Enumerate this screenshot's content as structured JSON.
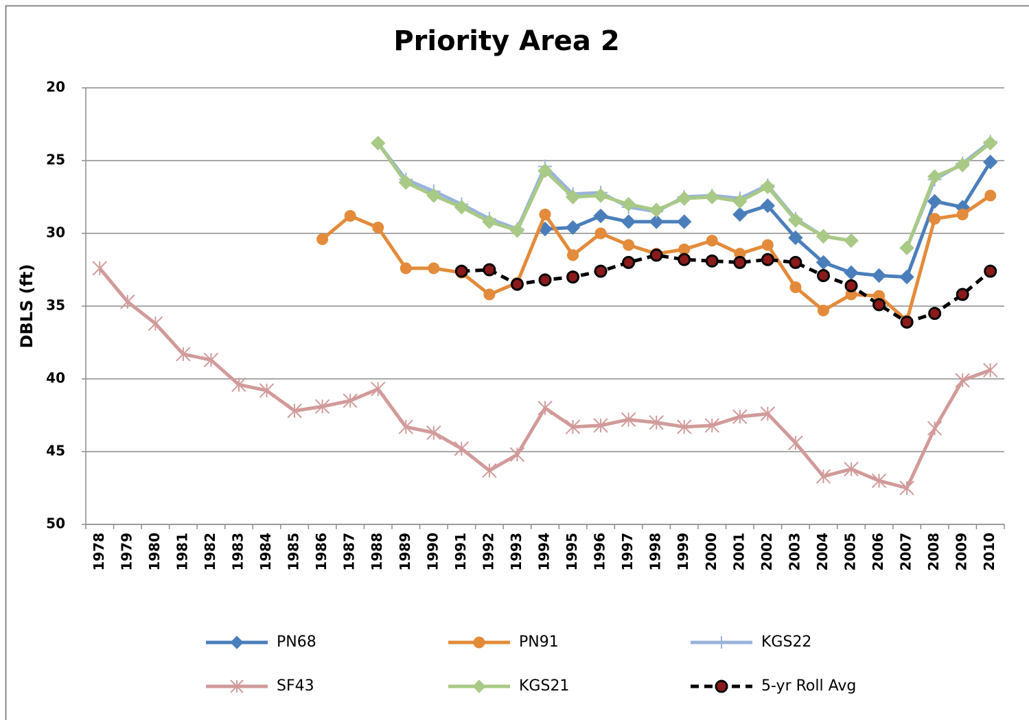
{
  "chart_data": {
    "type": "line",
    "title": "Priority Area 2",
    "y_label": "DBLS (ft)",
    "categories": [
      "1978",
      "1979",
      "1980",
      "1981",
      "1982",
      "1983",
      "1984",
      "1985",
      "1986",
      "1987",
      "1988",
      "1989",
      "1990",
      "1991",
      "1992",
      "1993",
      "1994",
      "1995",
      "1996",
      "1997",
      "1998",
      "1999",
      "2000",
      "2001",
      "2002",
      "2003",
      "2004",
      "2005",
      "2006",
      "2007",
      "2008",
      "2009",
      "2010"
    ],
    "ylim": [
      20,
      50
    ],
    "yticks": [
      20,
      25,
      30,
      35,
      40,
      45,
      50
    ],
    "y_inverted": true,
    "grid": true,
    "series": [
      {
        "name": "PN68",
        "color": "#4a7ebb",
        "marker": "diamond",
        "dash": false,
        "values": [
          null,
          null,
          null,
          null,
          null,
          null,
          null,
          null,
          null,
          null,
          null,
          null,
          null,
          null,
          null,
          null,
          29.7,
          29.6,
          28.8,
          29.2,
          29.2,
          29.2,
          null,
          28.7,
          28.1,
          30.3,
          32.0,
          32.7,
          32.9,
          33.0,
          27.8,
          28.2,
          25.1
        ]
      },
      {
        "name": "PN91",
        "color": "#e38b3a",
        "marker": "circle",
        "dash": false,
        "values": [
          null,
          null,
          null,
          null,
          null,
          null,
          null,
          null,
          30.4,
          28.8,
          29.6,
          32.4,
          32.4,
          32.7,
          34.2,
          33.4,
          28.7,
          31.5,
          30.0,
          30.8,
          31.4,
          31.1,
          30.5,
          31.4,
          30.8,
          33.7,
          35.3,
          34.2,
          34.3,
          36.0,
          29.0,
          28.7,
          27.4
        ]
      },
      {
        "name": "KGS22",
        "color": "#98b4dc",
        "marker": "plus",
        "dash": false,
        "values": [
          null,
          null,
          null,
          null,
          null,
          null,
          null,
          null,
          null,
          null,
          23.8,
          26.3,
          27.1,
          28.0,
          29.0,
          29.7,
          25.4,
          27.3,
          27.2,
          28.2,
          28.5,
          27.5,
          27.4,
          27.6,
          26.7,
          29.0,
          30.2,
          30.5,
          null,
          31.0,
          26.3,
          25.2,
          23.7
        ]
      },
      {
        "name": "SF43",
        "color": "#d29a9a",
        "marker": "star",
        "dash": false,
        "values": [
          32.4,
          34.7,
          36.2,
          38.3,
          38.7,
          40.4,
          40.8,
          42.2,
          41.9,
          41.5,
          40.7,
          43.3,
          43.7,
          44.8,
          46.3,
          45.2,
          42.0,
          43.3,
          43.2,
          42.8,
          43.0,
          43.3,
          43.2,
          42.6,
          42.4,
          44.4,
          46.7,
          46.2,
          47.0,
          47.5,
          43.4,
          40.1,
          39.4
        ]
      },
      {
        "name": "KGS21",
        "color": "#a9c986",
        "marker": "diamond",
        "dash": false,
        "values": [
          null,
          null,
          null,
          null,
          null,
          null,
          null,
          null,
          null,
          null,
          23.8,
          26.5,
          27.4,
          28.2,
          29.2,
          29.8,
          25.7,
          27.5,
          27.4,
          28.0,
          28.4,
          27.6,
          27.5,
          27.8,
          26.8,
          29.1,
          30.2,
          30.5,
          null,
          31.0,
          26.1,
          25.3,
          23.8
        ]
      },
      {
        "name": "5-yr Roll Avg",
        "color": "#000000",
        "marker": "circle",
        "dash": true,
        "values": [
          null,
          null,
          null,
          null,
          null,
          null,
          null,
          null,
          null,
          null,
          null,
          null,
          null,
          32.6,
          32.5,
          33.5,
          33.2,
          33.0,
          32.6,
          32.0,
          31.5,
          31.8,
          31.9,
          32.0,
          31.8,
          32.0,
          32.9,
          33.6,
          34.9,
          36.1,
          35.5,
          34.2,
          32.6
        ]
      }
    ]
  }
}
